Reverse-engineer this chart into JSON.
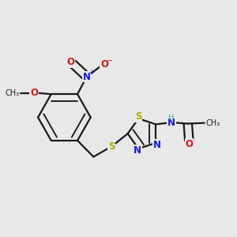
{
  "bg_color": "#e8e8e8",
  "bond_color": "#1a1a1a",
  "bond_lw": 1.6,
  "dbo": 0.018,
  "colors": {
    "C": "#1a1a1a",
    "N": "#1a1acc",
    "O": "#cc1a1a",
    "S": "#aaaa00",
    "H": "#3aacac"
  },
  "fs": 8.5,
  "fs_small": 7.0
}
